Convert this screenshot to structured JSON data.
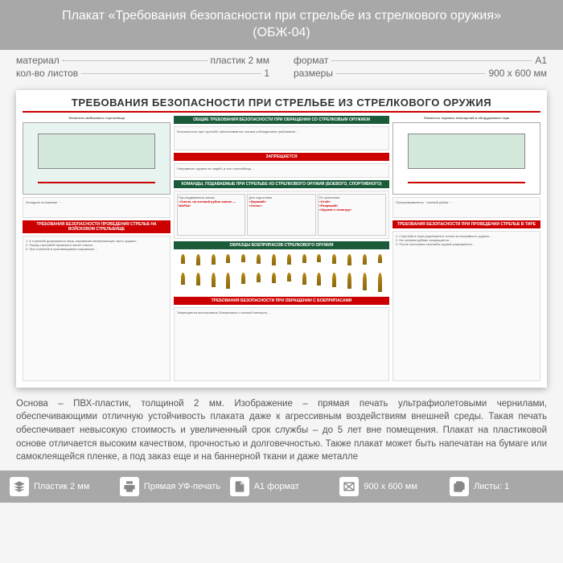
{
  "header": {
    "title": "Плакат «Требования безопасности при стрельбе из стрелкового оружия»",
    "subtitle": "(ОБЖ-04)"
  },
  "specs": {
    "left": [
      {
        "label": "материал",
        "value": "пластик 2 мм"
      },
      {
        "label": "кол-во листов",
        "value": "1"
      }
    ],
    "right": [
      {
        "label": "формат",
        "value": "A1"
      },
      {
        "label": "размеры",
        "value": "900 x 600 мм"
      }
    ]
  },
  "poster": {
    "title": "ТРЕБОВАНИЯ БЕЗОПАСНОСТИ ПРИ СТРЕЛЬБЕ ИЗ СТРЕЛКОВОГО ОРУЖИЯ",
    "colors": {
      "accent_red": "#c00",
      "accent_green": "#1a5c3a",
      "diagram_bg": "#e8f4f0",
      "diagram_field": "#d4e8dc"
    },
    "left_col": {
      "top_label": "Элементы войскового стрельбища",
      "bottom_head": "ТРЕБОВАНИЯ БЕЗОПАСНОСТИ ПРОВЕДЕНИЯ СТРЕЛЬБ НА ВОЙСКОВОМ СТРЕЛЬБИЩЕ"
    },
    "center_col": {
      "head1": "ОБЩИЕ ТРЕБОВАНИЯ БЕЗОПАСНОСТИ ПРИ ОБРАЩЕНИИ СО СТРЕЛКОВЫМ ОРУЖИЕМ",
      "forbidden": "ЗАПРЕЩАЕТСЯ",
      "head2": "КОМАНДЫ, ПОДАВАЕМЫЕ ПРИ СТРЕЛЬБЕ ИЗ СТРЕЛКОВОГО ОРУЖИЯ (БОЕВОГО, СПОРТИВНОГО)",
      "head3": "ОБРАЗЦЫ БОЕПРИПАСОВ СТРЕЛКОВОГО ОРУЖИЯ",
      "head4": "ТРЕБОВАНИЯ БЕЗОПАСНОСТИ ПРИ ОБРАЩЕНИИ С БОЕПРИПАСАМИ",
      "bullet_heights": [
        12,
        14,
        13,
        11,
        10,
        12,
        14,
        13,
        11,
        10,
        12,
        14,
        13,
        11,
        15,
        16,
        18,
        20,
        14,
        12,
        13,
        11,
        15,
        16,
        18,
        20,
        22,
        24
      ]
    },
    "right_col": {
      "top_label": "Элементы тировых помещений и оборудование тира",
      "bottom_head": "ТРЕБОВАНИЯ БЕЗОПАСНОСТИ ПРИ ПРОВЕДЕНИИ СТРЕЛЬБ В ТИРЕ"
    }
  },
  "description": "Основа – ПВХ-пластик, толщиной 2 мм. Изображение – прямая печать ультрафиолетовыми чернилами, обеспечивающими отличную устойчивость плаката даже к агрессивным воздействиям внешней среды. Такая печать обеспечивает невысокую стоимость и увеличенный срок службы – до 5 лет вне помещения. Плакат на пластиковой основе отличается высоким качеством, прочностью и долговечностью. Также плакат может быть напечатан на бумаге или самоклеящейся пленке, а под заказ еще и на баннерной ткани и даже металле",
  "footer": [
    {
      "icon": "layers",
      "label": "Пластик 2 мм"
    },
    {
      "icon": "printer",
      "label": "Прямая УФ-печать"
    },
    {
      "icon": "format",
      "label": "A1 формат"
    },
    {
      "icon": "size",
      "label": "900 x 600 мм"
    },
    {
      "icon": "sheets",
      "label": "Листы: 1"
    }
  ]
}
